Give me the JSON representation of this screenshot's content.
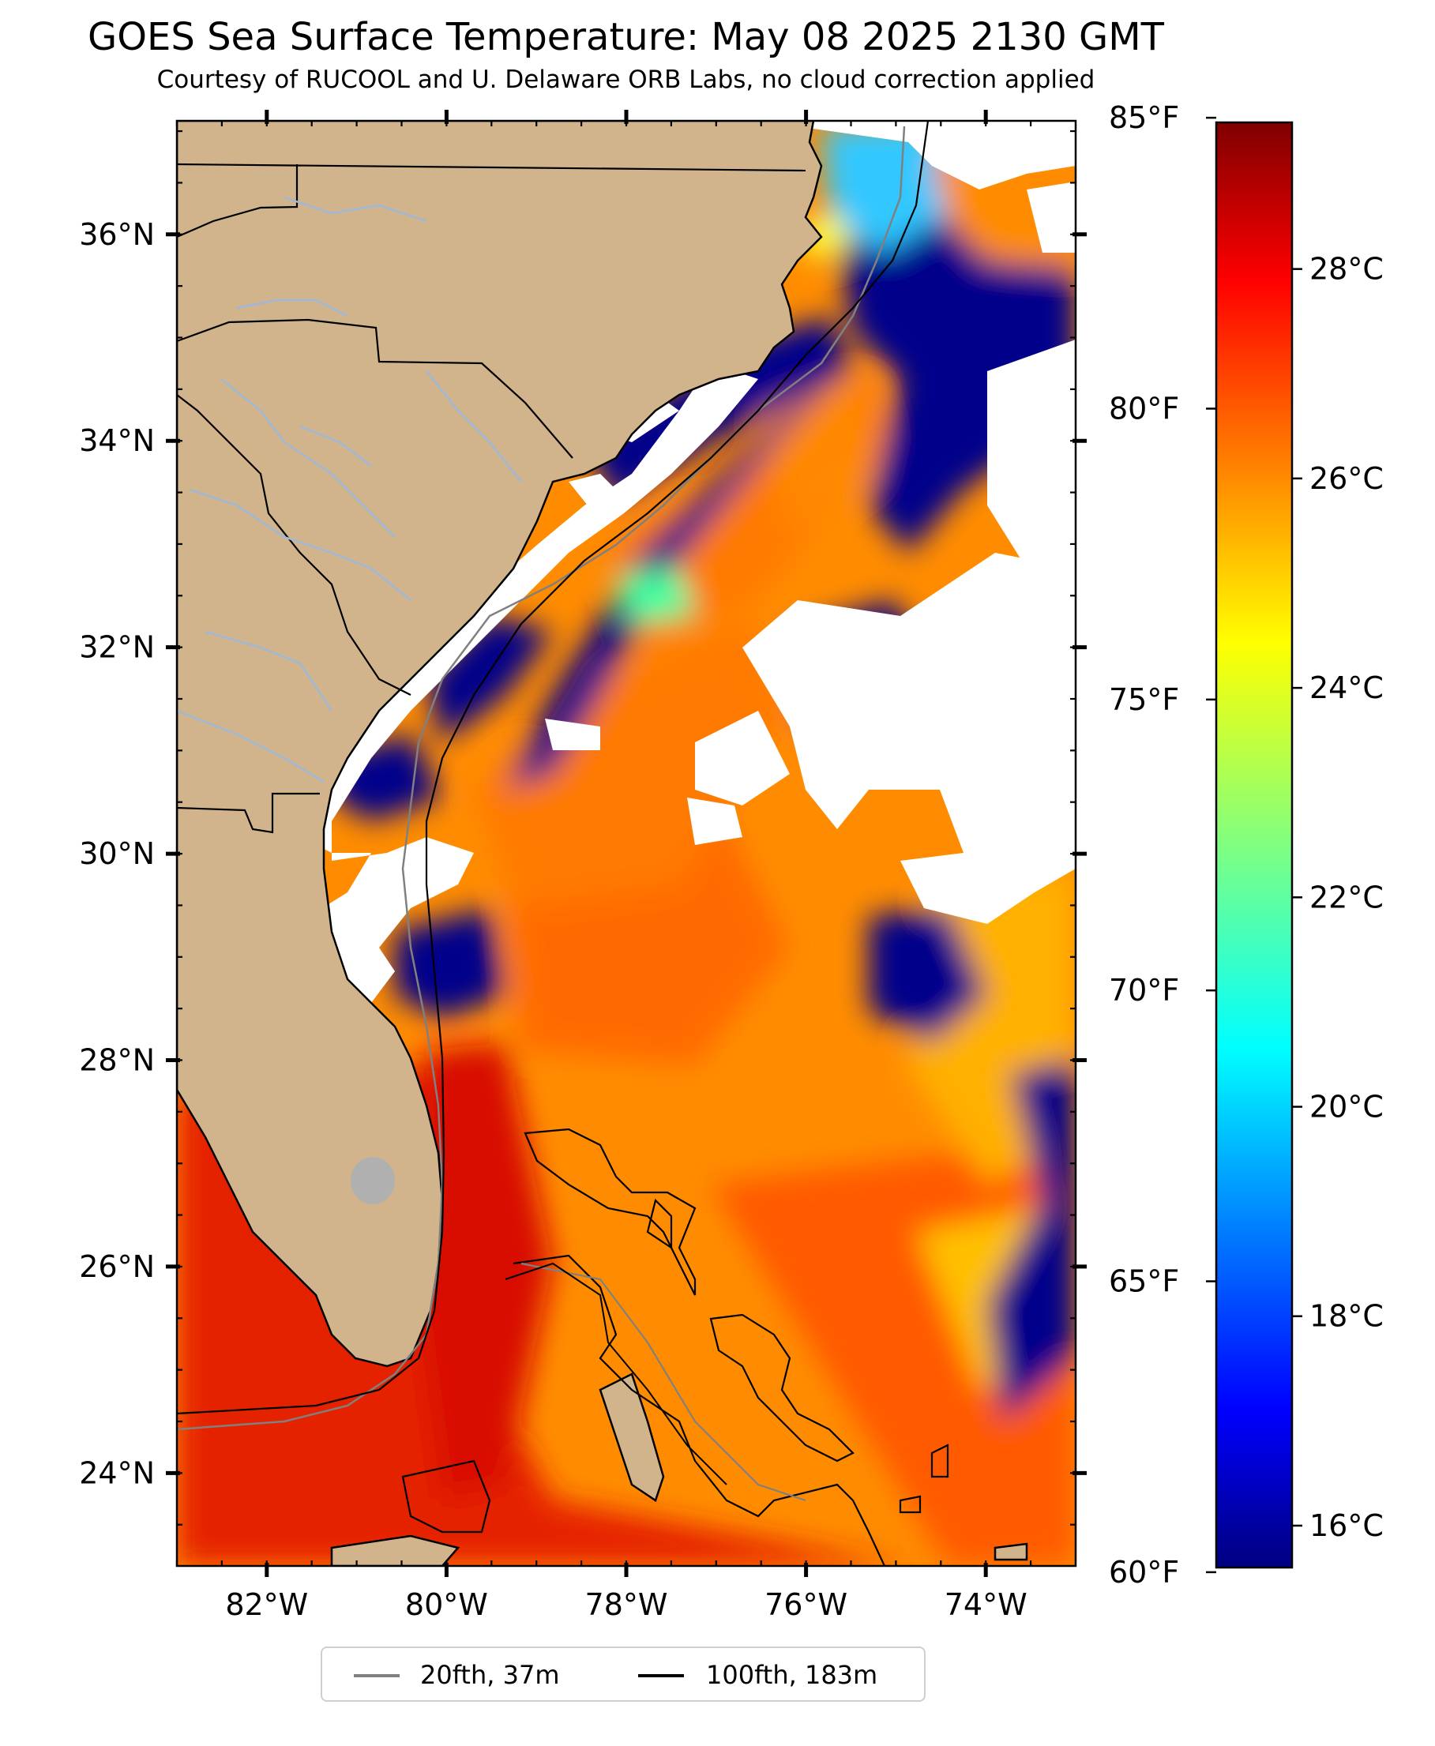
{
  "map": {
    "title": "GOES Sea Surface Temperature: May 08 2025 2130 GMT",
    "subtitle": "Courtesy of RUCOOL and U. Delaware ORB Labs, no cloud correction applied",
    "lat_labels": [
      {
        "lat": 36,
        "label": "36°N"
      },
      {
        "lat": 34,
        "label": "34°N"
      },
      {
        "lat": 32,
        "label": "32°N"
      },
      {
        "lat": 30,
        "label": "30°N"
      },
      {
        "lat": 28,
        "label": "28°N"
      },
      {
        "lat": 26,
        "label": "26°N"
      },
      {
        "lat": 24,
        "label": "24°N"
      }
    ],
    "lon_labels": [
      {
        "lon": -82,
        "label": "82°W"
      },
      {
        "lon": -80,
        "label": "80°W"
      },
      {
        "lon": -78,
        "label": "78°W"
      },
      {
        "lon": -76,
        "label": "76°W"
      },
      {
        "lon": -74,
        "label": "74°W"
      }
    ],
    "extent": {
      "lon_min": -83,
      "lon_max": -73,
      "lat_min": 23.1,
      "lat_max": 37.1
    },
    "colors": {
      "land": "#d2b48c",
      "cloud": "#ffffff",
      "rivers": "#9fb8d8"
    }
  },
  "colorbar": {
    "colormap": "jet",
    "range_c": [
      15.6,
      29.4
    ],
    "celsius_ticks": [
      {
        "value": 16,
        "label": "16°C"
      },
      {
        "value": 18,
        "label": "18°C"
      },
      {
        "value": 20,
        "label": "20°C"
      },
      {
        "value": 22,
        "label": "22°C"
      },
      {
        "value": 24,
        "label": "24°C"
      },
      {
        "value": 26,
        "label": "26°C"
      },
      {
        "value": 28,
        "label": "28°C"
      }
    ],
    "fahrenheit_ticks": [
      {
        "value": 60,
        "label": "60°F"
      },
      {
        "value": 65,
        "label": "65°F"
      },
      {
        "value": 70,
        "label": "70°F"
      },
      {
        "value": 75,
        "label": "75°F"
      },
      {
        "value": 80,
        "label": "80°F"
      },
      {
        "value": 85,
        "label": "85°F"
      }
    ]
  },
  "legend": {
    "items": [
      {
        "label": "20fth, 37m",
        "color": "#808080"
      },
      {
        "label": "100fth, 183m",
        "color": "#000000"
      }
    ]
  }
}
